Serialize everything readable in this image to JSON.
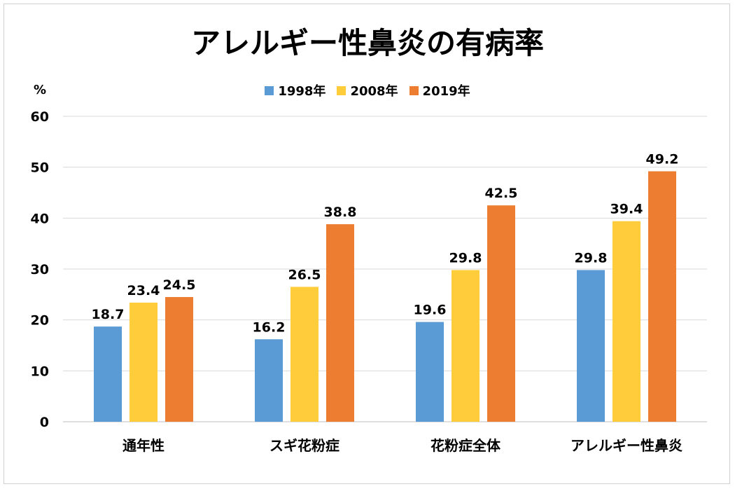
{
  "chart_data": {
    "type": "bar",
    "title": "アレルギー性鼻炎の有病率",
    "ylabel": "%",
    "xlabel": "",
    "ylim": [
      0,
      60
    ],
    "yticks": [
      0,
      10,
      20,
      30,
      40,
      50,
      60
    ],
    "grid": true,
    "legend_position": "top",
    "categories": [
      "通年性",
      "スギ花粉症",
      "花粉症全体",
      "アレルギー性鼻炎"
    ],
    "series": [
      {
        "name": "1998年",
        "color": "#5B9BD5",
        "values": [
          18.7,
          16.2,
          19.6,
          29.8
        ]
      },
      {
        "name": "2008年",
        "color": "#FFCD3C",
        "values": [
          23.4,
          26.5,
          29.8,
          39.4
        ]
      },
      {
        "name": "2019年",
        "color": "#ED7D31",
        "values": [
          24.5,
          38.8,
          42.5,
          49.2
        ]
      }
    ]
  }
}
